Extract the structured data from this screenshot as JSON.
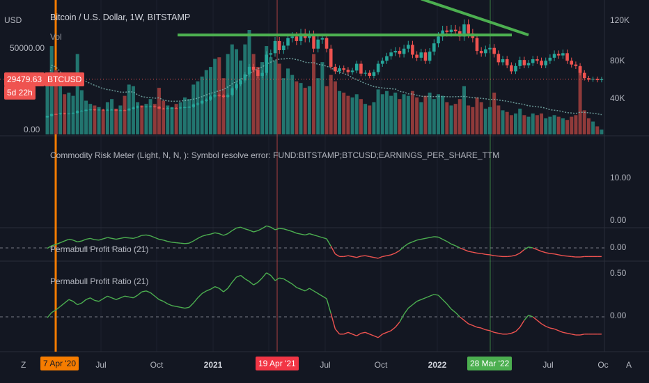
{
  "header": {
    "currency": "USD",
    "symbol_title": "Bitcoin / U.S. Dollar, 1W, BITSTAMP",
    "volume_label": "Vol",
    "price_scale_label": "50000.00",
    "zero_label": "0.00",
    "last_price": "29479.63",
    "countdown": "5d 22h",
    "ticker": "BTCUSD"
  },
  "right_axis": {
    "volume_ticks": [
      "120K",
      "80K",
      "40K"
    ],
    "risk_ticks": [
      "10.00",
      "0.00"
    ],
    "ppr_small_ticks": [
      "0.00"
    ],
    "ppr_large_ticks": [
      "0.50",
      "0.00"
    ]
  },
  "panes": {
    "risk_meter_label": "Commodity Risk Meter (Light, N, N, ): Symbol resolve error: FUND:BITSTAMP;BTCUSD;EARNINGS_PER_SHARE_TTM",
    "ppr_small_label": "Permabull Profit Ratio (21)",
    "ppr_large_label": "Permabull Profit Ratio (21)"
  },
  "x_axis": {
    "ticks": [
      "Jul",
      "Oct",
      "2021",
      "Jul",
      "Oct",
      "2022",
      "Jul",
      "Oc"
    ],
    "bold_ticks": [
      "2021",
      "2022"
    ],
    "markers": [
      {
        "label": "7 Apr '20",
        "color": "#f57c00"
      },
      {
        "label": "19 Apr '21",
        "color": "#f23645"
      },
      {
        "label": "28 Mar '22",
        "color": "#4caf50"
      }
    ],
    "left_button": "Z",
    "right_button": "A"
  },
  "colors": {
    "up": "#26a69a",
    "down": "#ef5350",
    "vol_up": "#22756f",
    "vol_down": "#8f3a3a",
    "trendline": "#4caf50",
    "ppr_positive": "#4caf50",
    "ppr_negative": "#ef5350",
    "ma_line": "#7fb8b3"
  },
  "chart_data": [
    {
      "type": "candlestick",
      "title": "Bitcoin / U.S. Dollar, 1W, BITSTAMP",
      "x_range": [
        "2020-03-09",
        "2022-10-01"
      ],
      "price_close": [
        5400,
        6800,
        6700,
        7300,
        6900,
        7100,
        7500,
        8800,
        8900,
        9600,
        9800,
        9500,
        9700,
        9300,
        9600,
        9700,
        9100,
        9300,
        9200,
        10300,
        11100,
        11800,
        11600,
        11700,
        11900,
        11600,
        10400,
        10300,
        10700,
        10800,
        10700,
        11100,
        11300,
        11500,
        13100,
        13800,
        15500,
        16300,
        18400,
        19200,
        19000,
        18100,
        19400,
        23800,
        26400,
        29000,
        33000,
        38000,
        36000,
        32000,
        34000,
        46000,
        47000,
        55000,
        49000,
        52000,
        57000,
        58000,
        55000,
        60000,
        57000,
        59000,
        50000,
        56000,
        57000,
        50000,
        38000,
        35000,
        37000,
        36000,
        34500,
        35500,
        40000,
        33500,
        34000,
        32000,
        34500,
        40000,
        42000,
        45000,
        47500,
        48500,
        46500,
        50000,
        52500,
        46000,
        44000,
        47500,
        42000,
        48000,
        53500,
        58000,
        62000,
        61000,
        62500,
        61500,
        58000,
        66000,
        60000,
        57000,
        48500,
        47000,
        49500,
        50500,
        46500,
        41000,
        43000,
        39000,
        35000,
        38500,
        42500,
        39000,
        40500,
        43000,
        42000,
        39000,
        42000,
        44000,
        46500,
        45500,
        47000,
        42000,
        39500,
        38500,
        34000,
        30500,
        29500,
        30000,
        29200,
        29800
      ],
      "trendline_horizontal_y": 59000,
      "trendline_descending": [
        [
          "2021-11-08",
          69000
        ],
        [
          "2022-05-02",
          41000
        ]
      ]
    },
    {
      "type": "bar",
      "title": "Vol",
      "y_ticks": [
        "120K",
        "80K",
        "40K"
      ],
      "values": [
        62,
        110,
        80,
        60,
        50,
        52,
        48,
        100,
        55,
        42,
        38,
        36,
        34,
        30,
        40,
        44,
        32,
        36,
        48,
        62,
        60,
        40,
        36,
        38,
        44,
        38,
        58,
        42,
        36,
        34,
        38,
        40,
        46,
        44,
        62,
        66,
        72,
        80,
        84,
        94,
        96,
        70,
        100,
        112,
        106,
        92,
        112,
        130,
        100,
        84,
        90,
        110,
        96,
        92,
        88,
        70,
        82,
        74,
        66,
        64,
        58,
        60,
        100,
        70,
        90,
        60,
        74,
        66,
        54,
        52,
        48,
        46,
        50,
        44,
        38,
        36,
        40,
        56,
        50,
        54,
        48,
        52,
        44,
        50,
        48,
        54,
        46,
        40,
        48,
        52,
        44,
        50,
        48,
        40,
        36,
        38,
        44,
        60,
        36,
        34,
        46,
        40,
        32,
        34,
        52,
        36,
        30,
        28,
        24,
        26,
        32,
        24,
        22,
        26,
        24,
        26,
        20,
        22,
        24,
        22,
        20,
        18,
        22,
        24,
        84,
        30,
        20,
        16,
        10,
        6
      ]
    },
    {
      "type": "line",
      "title": "Permabull Profit Ratio (21)",
      "y_ticks": [
        "0.50",
        "0.00"
      ],
      "values": [
        -0.01,
        0.05,
        0.08,
        0.12,
        0.16,
        0.2,
        0.18,
        0.14,
        0.16,
        0.2,
        0.22,
        0.19,
        0.18,
        0.21,
        0.24,
        0.22,
        0.2,
        0.22,
        0.24,
        0.23,
        0.22,
        0.25,
        0.29,
        0.3,
        0.28,
        0.24,
        0.2,
        0.18,
        0.15,
        0.13,
        0.12,
        0.11,
        0.1,
        0.11,
        0.16,
        0.22,
        0.27,
        0.3,
        0.32,
        0.35,
        0.33,
        0.29,
        0.33,
        0.4,
        0.46,
        0.48,
        0.44,
        0.41,
        0.37,
        0.4,
        0.45,
        0.51,
        0.48,
        0.42,
        0.45,
        0.44,
        0.41,
        0.38,
        0.34,
        0.32,
        0.3,
        0.33,
        0.3,
        0.27,
        0.24,
        0.21,
        0.04,
        -0.14,
        -0.2,
        -0.2,
        -0.18,
        -0.2,
        -0.22,
        -0.19,
        -0.18,
        -0.2,
        -0.22,
        -0.24,
        -0.2,
        -0.18,
        -0.16,
        -0.12,
        -0.06,
        0.03,
        0.1,
        0.14,
        0.18,
        0.2,
        0.22,
        0.24,
        0.26,
        0.25,
        0.2,
        0.15,
        0.09,
        0.05,
        0.0,
        -0.04,
        -0.08,
        -0.1,
        -0.12,
        -0.13,
        -0.15,
        -0.16,
        -0.18,
        -0.19,
        -0.2,
        -0.2,
        -0.19,
        -0.17,
        -0.12,
        -0.04,
        0.02,
        0.0,
        -0.04,
        -0.08,
        -0.11,
        -0.13,
        -0.14,
        -0.16,
        -0.18,
        -0.19,
        -0.2,
        -0.21,
        -0.21,
        -0.2,
        -0.2,
        -0.2,
        -0.2,
        -0.2
      ]
    }
  ]
}
